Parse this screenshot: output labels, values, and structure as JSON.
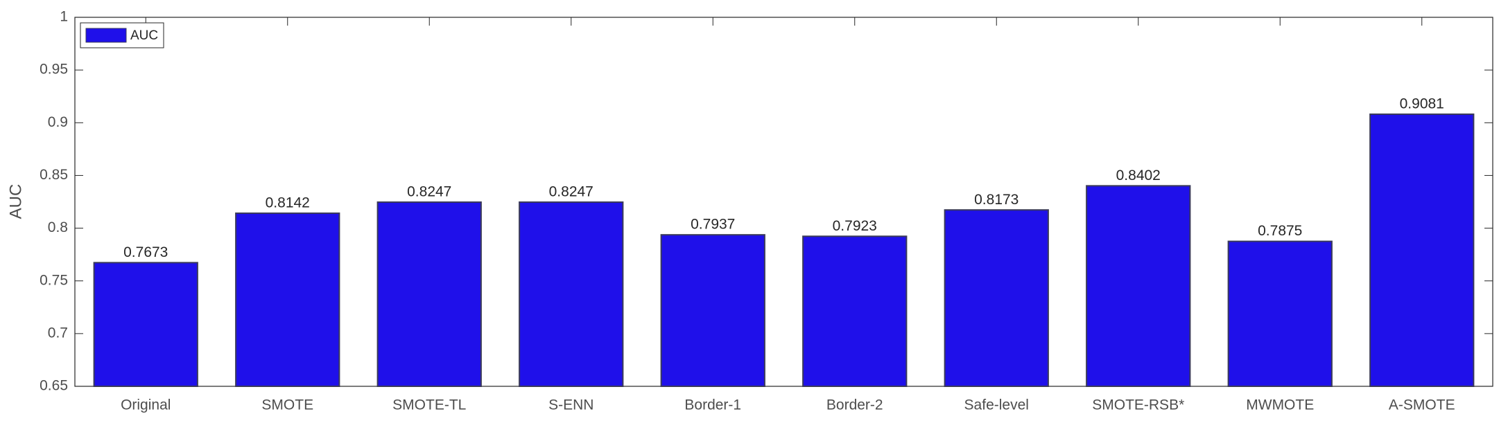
{
  "chart_data": {
    "type": "bar",
    "y_label": "AUC",
    "categories": [
      "Original",
      "SMOTE",
      "SMOTE-TL",
      "S-ENN",
      "Border-1",
      "Border-2",
      "Safe-level",
      "SMOTE-RSB*",
      "MWMOTE",
      "A-SMOTE"
    ],
    "series": [
      {
        "name": "AUC",
        "color": "#1f10ea",
        "values": [
          0.7673,
          0.8142,
          0.8247,
          0.8247,
          0.7937,
          0.7923,
          0.8173,
          0.8402,
          0.7875,
          0.9081
        ]
      }
    ],
    "ylim": [
      0.65,
      1
    ],
    "yticks": [
      0.65,
      0.7,
      0.75,
      0.8,
      0.85,
      0.9,
      0.95,
      1
    ],
    "legend": "upper-left",
    "grid": false
  }
}
